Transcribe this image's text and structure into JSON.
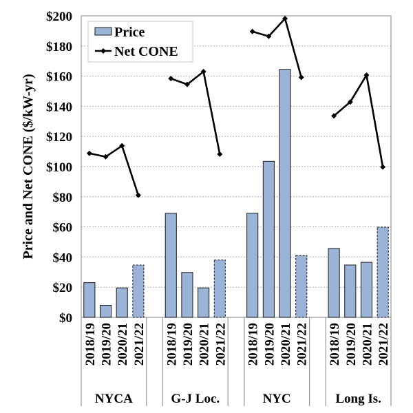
{
  "chart_data": {
    "type": "bar",
    "title": "",
    "ylabel": "Price and Net CONE ($/kW-yr)",
    "xlabel": "",
    "ylim": [
      0,
      200
    ],
    "ytick_step": 20,
    "ytick_prefix": "$",
    "grid": true,
    "legend_placement": "top-left",
    "groups": [
      {
        "label": "NYCA",
        "categories": [
          "2018/19",
          "2019/20",
          "2020/21",
          "2021/22"
        ]
      },
      {
        "label": "G-J Loc.",
        "categories": [
          "2018/19",
          "2019/20",
          "2020/21",
          "2021/22"
        ]
      },
      {
        "label": "NYC",
        "categories": [
          "2018/19",
          "2019/20",
          "2020/21",
          "2021/22"
        ]
      },
      {
        "label": "Long Is.",
        "categories": [
          "2018/19",
          "2019/20",
          "2020/21",
          "2021/22"
        ]
      }
    ],
    "series": [
      {
        "name": "Price",
        "type": "bar",
        "color": "#9bb3d6",
        "values": [
          [
            23,
            8,
            19.5,
            34.7
          ],
          [
            69,
            29.8,
            19.5,
            38
          ],
          [
            69,
            103.5,
            164.5,
            41
          ],
          [
            45.7,
            34.7,
            36.5,
            59.8
          ]
        ]
      },
      {
        "name": "Net CONE",
        "type": "line",
        "color": "#000000",
        "values": [
          [
            108.8,
            106.5,
            113.8,
            81
          ],
          [
            158.4,
            154.5,
            163,
            108.2
          ],
          [
            189.6,
            186.4,
            198.2,
            159.2
          ],
          [
            133.6,
            142.8,
            160.7,
            99.7
          ]
        ]
      }
    ],
    "dashed_outline_category": "2021/22"
  }
}
